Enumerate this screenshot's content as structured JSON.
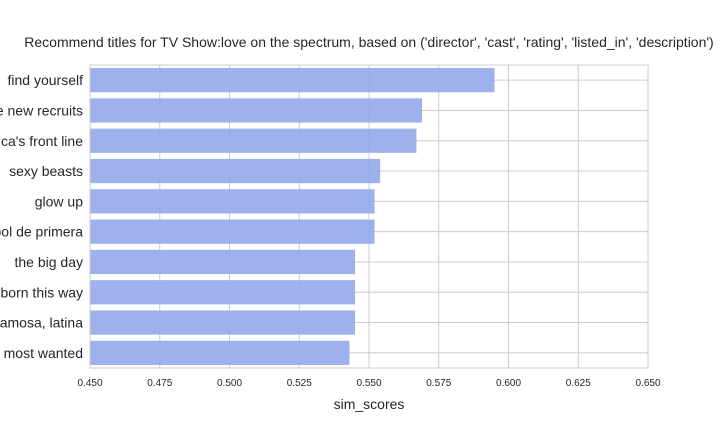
{
  "chart_data": {
    "type": "bar",
    "orientation": "horizontal",
    "title": "Recommend titles for TV Show:love on the spectrum, based on ('director', 'cast', 'rating', 'listed_in', 'description')",
    "xlabel": "sim_scores",
    "ylabel": "",
    "xlim": [
      0.45,
      0.65
    ],
    "xticks": [
      "0.450",
      "0.475",
      "0.500",
      "0.525",
      "0.550",
      "0.575",
      "0.600",
      "0.625",
      "0.650"
    ],
    "grid": true,
    "bar_color": "#92a8eb",
    "categories": [
      "find yourself",
      "the new recruits",
      "africa's front line",
      "sexy beasts",
      "glow up",
      "fútbol de primera",
      "the big day",
      "born this way",
      "famosa, latina",
      "america's most wanted"
    ],
    "values": [
      0.595,
      0.569,
      0.567,
      0.554,
      0.552,
      0.552,
      0.545,
      0.545,
      0.545,
      0.543
    ]
  }
}
